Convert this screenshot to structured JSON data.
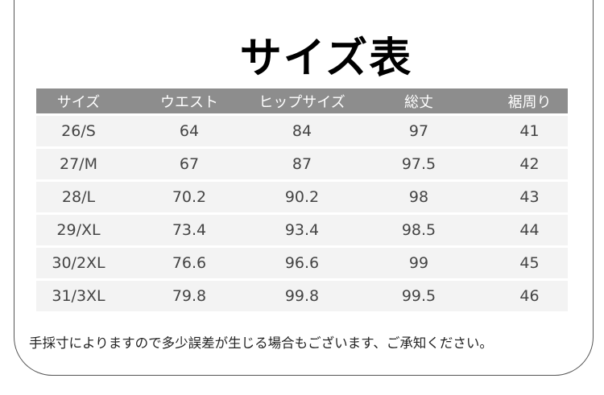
{
  "title": "サイズ表",
  "table": {
    "headers": [
      "サイズ",
      "ウエスト",
      "ヒップサイズ",
      "総丈",
      "裾周り"
    ],
    "rows": [
      [
        "26/S",
        "64",
        "84",
        "97",
        "41"
      ],
      [
        "27/M",
        "67",
        "87",
        "97.5",
        "42"
      ],
      [
        "28/L",
        "70.2",
        "90.2",
        "98",
        "43"
      ],
      [
        "29/XL",
        "73.4",
        "93.4",
        "98.5",
        "44"
      ],
      [
        "30/2XL",
        "76.6",
        "96.6",
        "99",
        "45"
      ],
      [
        "31/3XL",
        "79.8",
        "99.8",
        "99.5",
        "46"
      ]
    ]
  },
  "note": "手採寸によりますので多少誤差が生じる場合もございます、ご承知ください。",
  "colors": {
    "header_bg": "#8d8d8d",
    "row_bg": "#f3f3f3"
  }
}
